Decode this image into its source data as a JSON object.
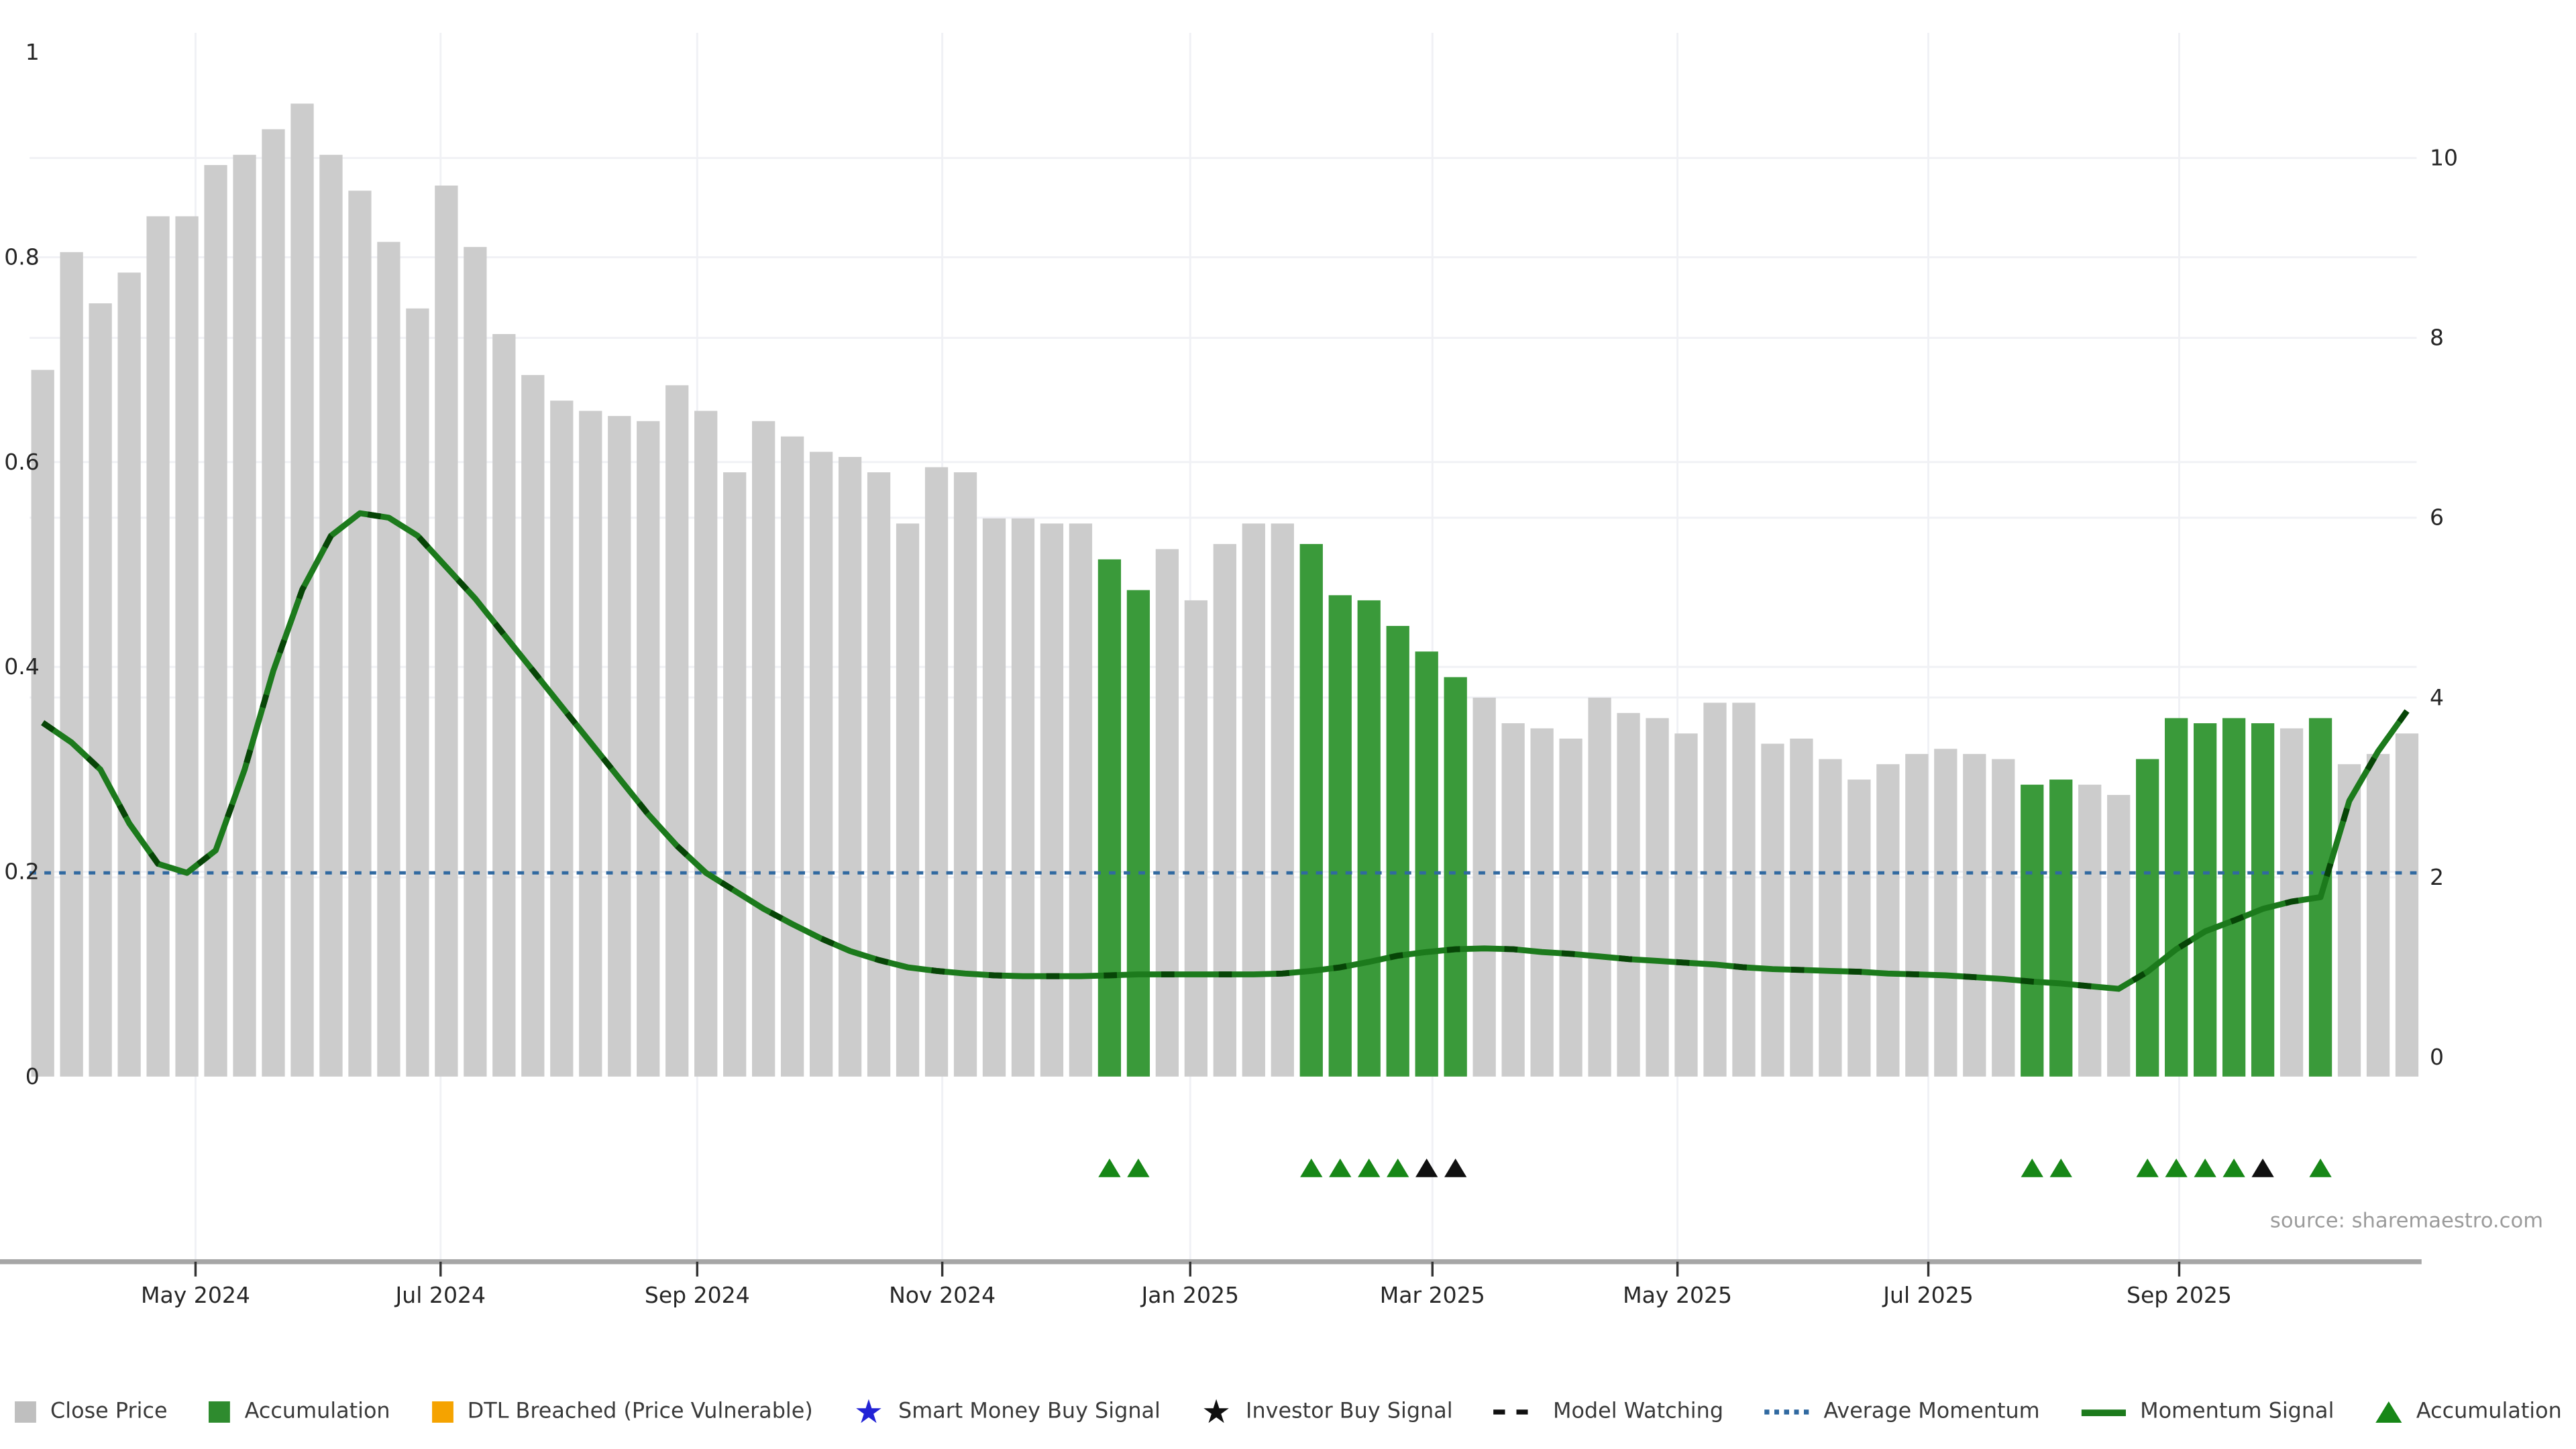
{
  "source_note": "source: sharemaestro.com",
  "colors": {
    "close_bar": "#cccccc",
    "close_legend": "#bfbfbf",
    "accumulation": "#3a9a3a",
    "accumulation_legend": "#2e8b2e",
    "dtl_breached": "#f5a300",
    "smart_money": "#2223d6",
    "investor": "#101010",
    "model_watching": "#101010",
    "average_momentum": "#3069a0",
    "momentum_line": "#1c7a1c",
    "momentum_dash": "#063f06",
    "marker_green": "#178717",
    "marker_black": "#101010",
    "grid": "#f0f1f5",
    "axis_line": "#a6a6a6",
    "tick": "#333333",
    "text": "#262626",
    "source_text": "#9b9b9b"
  },
  "legend": {
    "items": [
      {
        "label": "Close Price",
        "swatch": "square",
        "color": "close_legend"
      },
      {
        "label": "Accumulation",
        "swatch": "square",
        "color": "accumulation_legend"
      },
      {
        "label": "DTL Breached (Price Vulnerable)",
        "swatch": "square",
        "color": "dtl_breached"
      },
      {
        "label": "Smart Money Buy Signal",
        "swatch": "star",
        "color": "smart_money",
        "glyph": "★"
      },
      {
        "label": "Investor Buy Signal",
        "swatch": "star",
        "color": "investor",
        "glyph": "★"
      },
      {
        "label": "Model Watching",
        "swatch": "dashes",
        "color": "model_watching"
      },
      {
        "label": "Average Momentum",
        "swatch": "dots",
        "color": "average_momentum"
      },
      {
        "label": "Momentum Signal",
        "swatch": "line",
        "color": "momentum_line"
      },
      {
        "label": "Accumulation",
        "swatch": "triangle",
        "color": "marker_green"
      }
    ]
  },
  "chart_data": {
    "type": "bar",
    "title": "",
    "xlabel": "",
    "ylabel": "",
    "x_tick_labels": [
      "May 2024",
      "Jul 2024",
      "Sep 2024",
      "Nov 2024",
      "Jan 2025",
      "Mar 2025",
      "May 2025",
      "Jul 2025",
      "Sep 2025"
    ],
    "x_tick_positions": [
      5.3,
      13.8,
      22.7,
      31.2,
      39.8,
      48.2,
      56.7,
      65.4,
      74.1
    ],
    "left_axis": {
      "tick_labels": [
        "0",
        "0.2",
        "0.4",
        "0.6",
        "0.8",
        "1"
      ],
      "tick_values": [
        0,
        0.2,
        0.4,
        0.6,
        0.8,
        1
      ],
      "range": [
        0,
        1
      ],
      "gridline_values": [
        0.2,
        0.4,
        0.6,
        0.8
      ]
    },
    "right_axis": {
      "tick_labels": [
        "0",
        "2",
        "4",
        "6",
        "8",
        "10"
      ],
      "tick_values": [
        0,
        2,
        4,
        6,
        8,
        10
      ],
      "range": [
        0,
        10
      ],
      "gridline_values": [
        2,
        4,
        6,
        8,
        10
      ]
    },
    "grid": true,
    "legend_position": "bottom-center",
    "series": [
      {
        "name": "Close Price",
        "type": "bar",
        "axis": "left",
        "values": [
          0.69,
          0.805,
          0.755,
          0.785,
          0.84,
          0.84,
          0.89,
          0.9,
          0.925,
          0.95,
          0.9,
          0.865,
          0.815,
          0.75,
          0.87,
          0.81,
          0.725,
          0.685,
          0.66,
          0.65,
          0.645,
          0.64,
          0.675,
          0.65,
          0.59,
          0.64,
          0.625,
          0.61,
          0.605,
          0.59,
          0.54,
          0.595,
          0.59,
          0.545,
          0.545,
          0.54,
          0.54,
          0.505,
          0.475,
          0.515,
          0.465,
          0.52,
          0.54,
          0.54,
          0.52,
          0.47,
          0.465,
          0.44,
          0.415,
          0.39,
          0.37,
          0.345,
          0.34,
          0.33,
          0.37,
          0.355,
          0.35,
          0.335,
          0.365,
          0.365,
          0.325,
          0.33,
          0.31,
          0.29,
          0.305,
          0.315,
          0.32,
          0.315,
          0.31,
          0.285,
          0.29,
          0.285,
          0.275,
          0.31,
          0.35,
          0.345,
          0.35,
          0.345,
          0.34,
          0.35,
          0.305,
          0.315,
          0.335
        ]
      },
      {
        "name": "Accumulation (green bars)",
        "type": "bar-highlight",
        "indices": [
          37,
          38,
          44,
          45,
          46,
          47,
          48,
          49,
          69,
          70,
          73,
          74,
          75,
          76,
          77,
          79
        ]
      },
      {
        "name": "Momentum Signal",
        "type": "line",
        "axis": "right",
        "values": [
          3.72,
          3.5,
          3.2,
          2.6,
          2.15,
          2.05,
          2.3,
          3.2,
          4.3,
          5.2,
          5.8,
          6.05,
          6.0,
          5.8,
          5.45,
          5.1,
          4.7,
          4.3,
          3.9,
          3.5,
          3.1,
          2.7,
          2.35,
          2.05,
          1.85,
          1.65,
          1.48,
          1.32,
          1.18,
          1.08,
          1.0,
          0.96,
          0.93,
          0.91,
          0.9,
          0.9,
          0.9,
          0.91,
          0.92,
          0.92,
          0.92,
          0.92,
          0.92,
          0.93,
          0.96,
          1.0,
          1.06,
          1.13,
          1.17,
          1.2,
          1.21,
          1.2,
          1.17,
          1.15,
          1.12,
          1.09,
          1.07,
          1.05,
          1.03,
          1.0,
          0.98,
          0.97,
          0.96,
          0.95,
          0.93,
          0.92,
          0.91,
          0.89,
          0.87,
          0.84,
          0.82,
          0.79,
          0.76,
          0.95,
          1.2,
          1.4,
          1.52,
          1.65,
          1.73,
          1.78,
          2.85,
          3.4,
          3.85
        ]
      },
      {
        "name": "Average Momentum",
        "type": "hline",
        "axis": "right",
        "value": 2.05
      },
      {
        "name": "Accumulation markers",
        "type": "marker-triangle",
        "color": "marker_green",
        "indices": [
          37,
          38,
          44,
          45,
          46,
          47,
          69,
          70,
          73,
          74,
          75,
          76,
          79
        ]
      },
      {
        "name": "Investor Buy Signal markers",
        "type": "marker-triangle",
        "color": "marker_black",
        "indices": [
          48,
          49,
          77
        ]
      }
    ]
  }
}
